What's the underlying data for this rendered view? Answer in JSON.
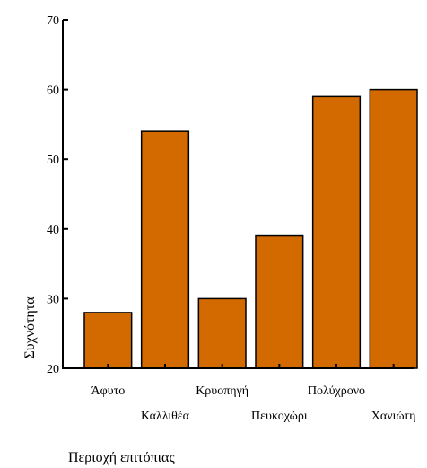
{
  "chart_data": {
    "type": "bar",
    "title": "",
    "xlabel": "Περιοχή επιτόπιας",
    "ylabel": "Συχνότητα",
    "categories": [
      "Άφυτο",
      "Καλλιθέα",
      "Κρυοπηγή",
      "Πευκοχώρι",
      "Πολύχρονο",
      "Χανιώτη"
    ],
    "values": [
      28,
      54,
      30,
      39,
      59,
      60
    ],
    "ylim": [
      20,
      70
    ],
    "yticks": [
      20,
      30,
      40,
      50,
      60,
      70
    ],
    "grid": false,
    "legend": "none",
    "colors": {
      "bar": "#D26A00",
      "outline": "#000000"
    }
  }
}
